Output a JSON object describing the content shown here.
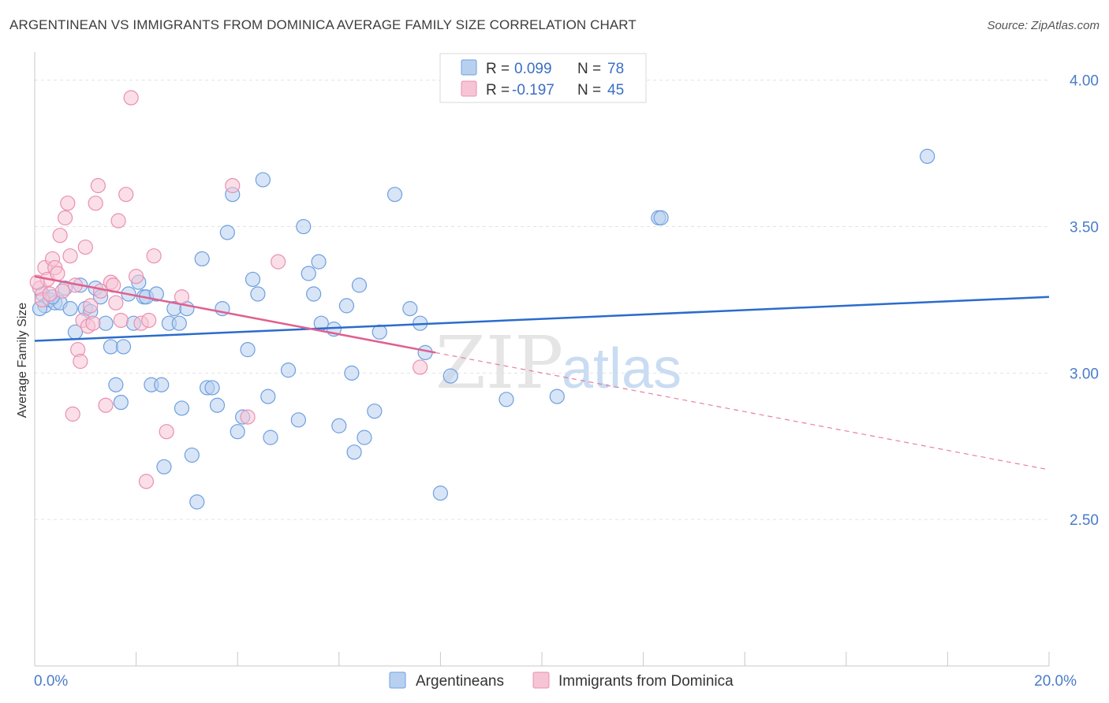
{
  "title": "ARGENTINEAN VS IMMIGRANTS FROM DOMINICA AVERAGE FAMILY SIZE CORRELATION CHART",
  "source": "Source: ZipAtlas.com",
  "colors": {
    "blue": "#6e9fdf",
    "blue_fill": "#b8d0f0",
    "blue_line": "#2b6ccc",
    "pink": "#ea8fb0",
    "pink_fill": "#f6c4d5",
    "pink_line": "#e0608f",
    "tick_label": "#4a7cc9"
  },
  "legend": {
    "rows": [
      {
        "r_label": "R =",
        "r_value": "0.099",
        "n_label": "N =",
        "n_value": "78"
      },
      {
        "r_label": "R =",
        "r_value": "-0.197",
        "n_label": "N =",
        "n_value": "45"
      }
    ]
  },
  "watermark": {
    "zip": "ZIP",
    "atlas": "atlas"
  },
  "chart_data": {
    "type": "scatter",
    "ylabel": "Average Family Size",
    "xlim": [
      0,
      20
    ],
    "ylim": [
      2.0,
      4.08
    ],
    "x_tick_labels": [
      "0.0%",
      "20.0%"
    ],
    "y_ticks": [
      2.5,
      3.0,
      3.5,
      4.0
    ],
    "y_tick_labels": [
      "2.50",
      "3.00",
      "3.50",
      "4.00"
    ],
    "grid": true,
    "legend_position": "top-center",
    "series": [
      {
        "name": "Argentineans",
        "trend": {
          "x": [
            0,
            20
          ],
          "y": [
            3.11,
            3.26
          ]
        },
        "points": [
          [
            0.15,
            3.27
          ],
          [
            0.2,
            3.23
          ],
          [
            0.3,
            3.25
          ],
          [
            0.4,
            3.24
          ],
          [
            0.5,
            3.24
          ],
          [
            0.6,
            3.29
          ],
          [
            0.7,
            3.22
          ],
          [
            0.8,
            3.14
          ],
          [
            0.9,
            3.3
          ],
          [
            1.0,
            3.22
          ],
          [
            1.1,
            3.21
          ],
          [
            1.2,
            3.29
          ],
          [
            1.3,
            3.26
          ],
          [
            1.4,
            3.17
          ],
          [
            1.5,
            3.09
          ],
          [
            1.6,
            2.96
          ],
          [
            1.7,
            2.9
          ],
          [
            1.75,
            3.09
          ],
          [
            1.85,
            3.27
          ],
          [
            1.95,
            3.17
          ],
          [
            2.05,
            3.31
          ],
          [
            2.15,
            3.26
          ],
          [
            2.2,
            3.26
          ],
          [
            2.3,
            2.96
          ],
          [
            2.4,
            3.27
          ],
          [
            2.5,
            2.96
          ],
          [
            2.55,
            2.68
          ],
          [
            2.65,
            3.17
          ],
          [
            2.75,
            3.22
          ],
          [
            2.85,
            3.17
          ],
          [
            2.9,
            2.88
          ],
          [
            3.0,
            3.22
          ],
          [
            3.1,
            2.72
          ],
          [
            3.2,
            2.56
          ],
          [
            3.3,
            3.39
          ],
          [
            3.4,
            2.95
          ],
          [
            3.5,
            2.95
          ],
          [
            3.6,
            2.89
          ],
          [
            3.7,
            3.22
          ],
          [
            3.8,
            3.48
          ],
          [
            3.9,
            3.61
          ],
          [
            4.0,
            2.8
          ],
          [
            4.1,
            2.85
          ],
          [
            4.2,
            3.08
          ],
          [
            4.3,
            3.32
          ],
          [
            4.4,
            3.27
          ],
          [
            4.5,
            3.66
          ],
          [
            4.6,
            2.92
          ],
          [
            4.65,
            2.78
          ],
          [
            5.0,
            3.01
          ],
          [
            5.2,
            2.84
          ],
          [
            5.3,
            3.5
          ],
          [
            5.4,
            3.34
          ],
          [
            5.5,
            3.27
          ],
          [
            5.6,
            3.38
          ],
          [
            5.65,
            3.17
          ],
          [
            5.9,
            3.15
          ],
          [
            6.0,
            2.82
          ],
          [
            6.15,
            3.23
          ],
          [
            6.25,
            3.0
          ],
          [
            6.3,
            2.73
          ],
          [
            6.4,
            3.3
          ],
          [
            6.5,
            2.78
          ],
          [
            6.7,
            2.87
          ],
          [
            6.8,
            3.14
          ],
          [
            7.1,
            3.61
          ],
          [
            7.4,
            3.22
          ],
          [
            7.6,
            3.17
          ],
          [
            7.7,
            3.07
          ],
          [
            8.0,
            2.59
          ],
          [
            8.2,
            2.99
          ],
          [
            9.3,
            2.91
          ],
          [
            10.3,
            2.92
          ],
          [
            12.3,
            3.53
          ],
          [
            12.35,
            3.53
          ],
          [
            17.6,
            3.74
          ],
          [
            0.1,
            3.22
          ],
          [
            0.35,
            3.26
          ]
        ]
      },
      {
        "name": "Immigrants from Dominica",
        "trend": {
          "x": [
            0,
            7.9
          ],
          "y": [
            3.33,
            3.07
          ]
        },
        "trend_dashed": {
          "x": [
            7.9,
            20
          ],
          "y": [
            3.07,
            2.67
          ]
        },
        "points": [
          [
            0.1,
            3.29
          ],
          [
            0.15,
            3.25
          ],
          [
            0.2,
            3.36
          ],
          [
            0.25,
            3.32
          ],
          [
            0.3,
            3.27
          ],
          [
            0.35,
            3.39
          ],
          [
            0.4,
            3.36
          ],
          [
            0.45,
            3.34
          ],
          [
            0.5,
            3.47
          ],
          [
            0.55,
            3.28
          ],
          [
            0.6,
            3.53
          ],
          [
            0.65,
            3.58
          ],
          [
            0.7,
            3.4
          ],
          [
            0.75,
            2.86
          ],
          [
            0.8,
            3.3
          ],
          [
            0.85,
            3.08
          ],
          [
            0.9,
            3.04
          ],
          [
            0.95,
            3.18
          ],
          [
            1.0,
            3.43
          ],
          [
            1.05,
            3.16
          ],
          [
            1.1,
            3.23
          ],
          [
            1.15,
            3.17
          ],
          [
            1.2,
            3.58
          ],
          [
            1.25,
            3.64
          ],
          [
            1.3,
            3.28
          ],
          [
            1.4,
            2.89
          ],
          [
            1.5,
            3.31
          ],
          [
            1.55,
            3.3
          ],
          [
            1.6,
            3.24
          ],
          [
            1.65,
            3.52
          ],
          [
            1.7,
            3.18
          ],
          [
            1.8,
            3.61
          ],
          [
            1.9,
            3.94
          ],
          [
            2.0,
            3.33
          ],
          [
            2.1,
            3.17
          ],
          [
            2.2,
            2.63
          ],
          [
            2.25,
            3.18
          ],
          [
            2.35,
            3.4
          ],
          [
            2.6,
            2.8
          ],
          [
            2.9,
            3.26
          ],
          [
            3.9,
            3.64
          ],
          [
            4.2,
            2.85
          ],
          [
            4.8,
            3.38
          ],
          [
            7.6,
            3.02
          ],
          [
            0.05,
            3.31
          ]
        ]
      }
    ]
  }
}
